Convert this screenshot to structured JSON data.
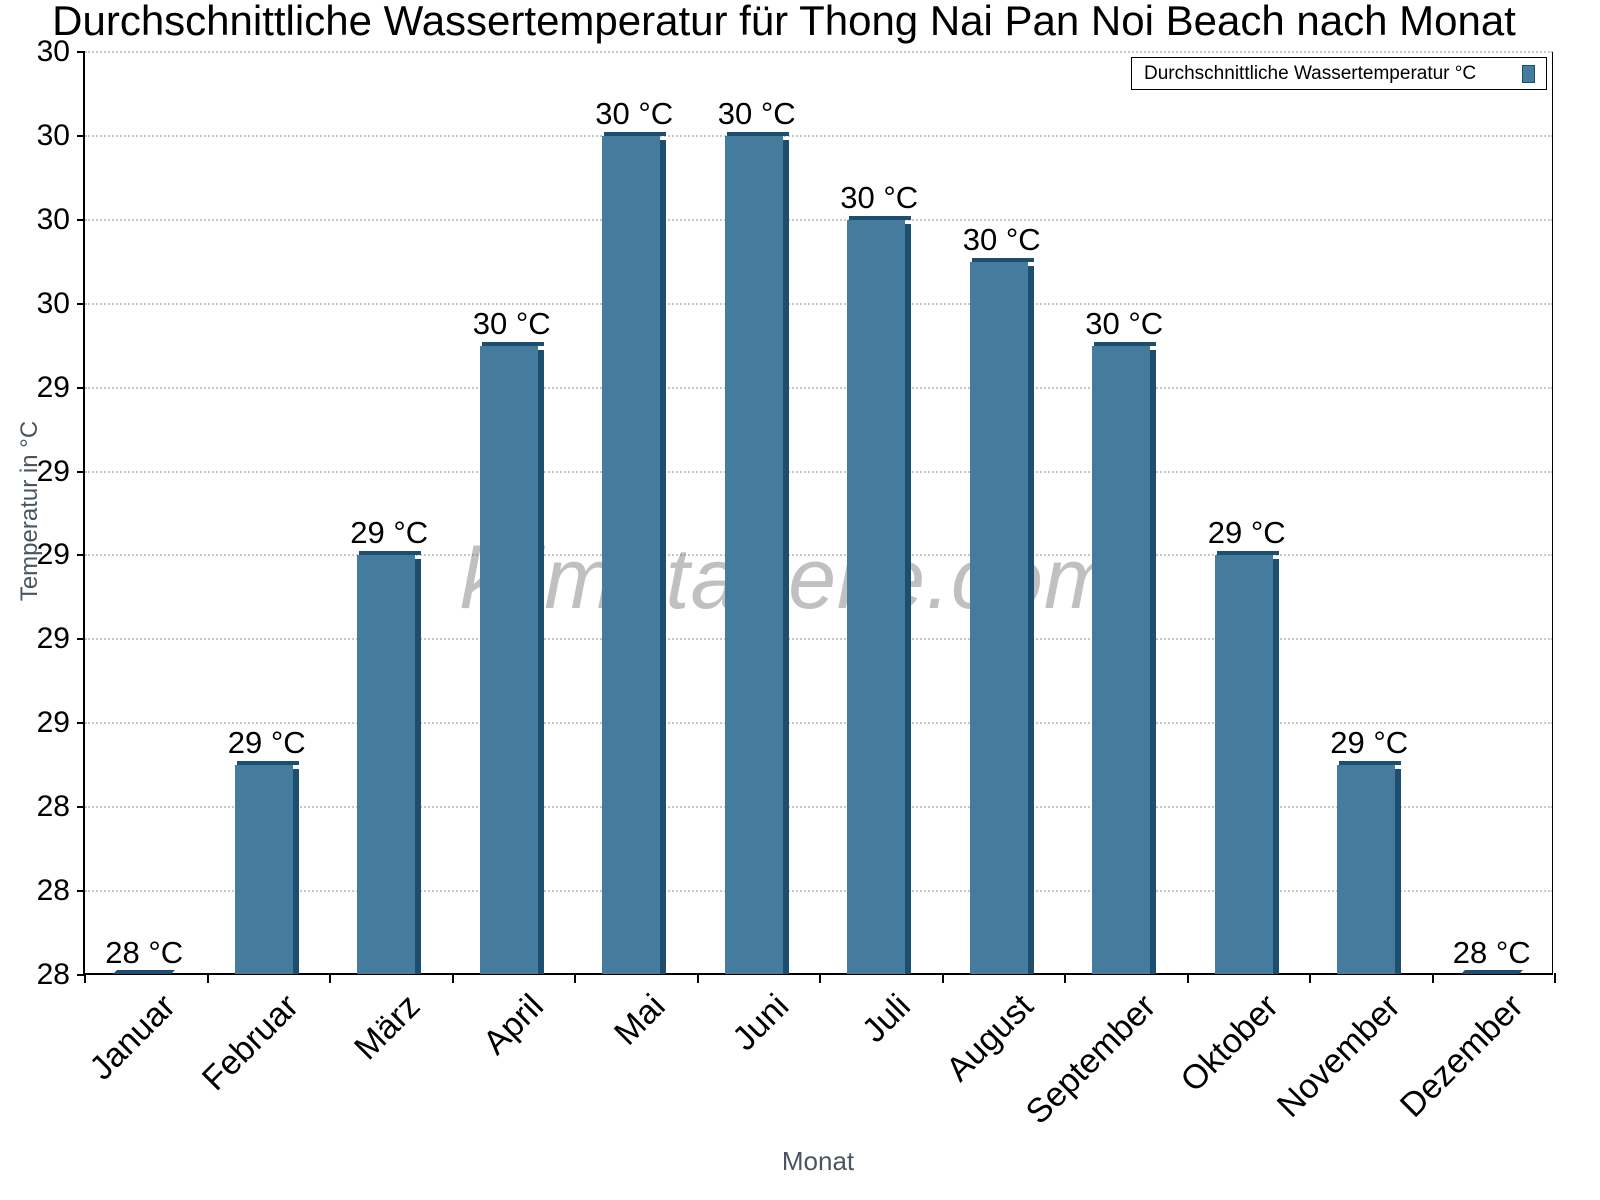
{
  "chart_data": {
    "type": "bar",
    "title": "Durchschnittliche Wassertemperatur für Thong Nai Pan Noi Beach nach Monat",
    "xlabel": "Monat",
    "ylabel": "Temperatur in °C",
    "categories": [
      "Januar",
      "Februar",
      "März",
      "April",
      "Mai",
      "Juni",
      "Juli",
      "August",
      "September",
      "Oktober",
      "November",
      "Dezember"
    ],
    "series": [
      {
        "name": "Durchschnittliche Wassertemperatur °C",
        "color": "#457b9d",
        "values": [
          28.0,
          28.5,
          29.0,
          29.5,
          30.0,
          30.0,
          29.8,
          29.7,
          29.5,
          29.0,
          28.5,
          28.0
        ],
        "data_labels": [
          "28 °C",
          "29 °C",
          "29 °C",
          "30 °C",
          "30 °C",
          "30 °C",
          "30 °C",
          "30 °C",
          "30 °C",
          "29 °C",
          "29 °C",
          "28 °C"
        ]
      }
    ],
    "ylim": [
      28.0,
      30.2
    ],
    "y_tick_values": [
      28.0,
      28.2,
      28.4,
      28.6,
      28.8,
      29.0,
      29.2,
      29.4,
      29.6,
      29.8,
      30.0,
      30.2
    ],
    "y_tick_labels": [
      "28",
      "28",
      "28",
      "29",
      "29",
      "29",
      "29",
      "29",
      "30",
      "30",
      "30",
      "30"
    ],
    "grid": true,
    "legend_position": "top-right",
    "watermark": "klimatabelle.com"
  },
  "legend": {
    "label": "Durchschnittliche Wassertemperatur °C"
  }
}
